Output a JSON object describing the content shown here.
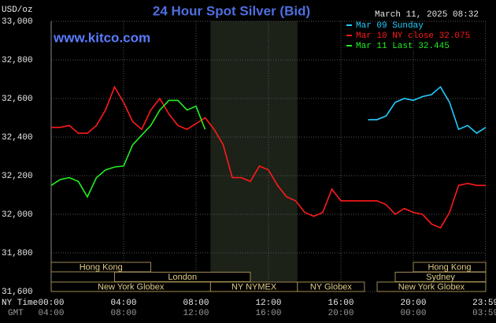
{
  "chart_data": {
    "type": "line",
    "title": "24 Hour Spot Silver (Bid)",
    "watermark": "www.kitco.com",
    "timestamp": "March 11, 2025 08:32",
    "ylabel": "USD/oz",
    "xlabel": "NY Time",
    "x2label": "GMT",
    "x": [
      0,
      0.5,
      1,
      1.5,
      2,
      2.5,
      3,
      3.5,
      4,
      4.5,
      5,
      5.5,
      6,
      6.5,
      7,
      7.5,
      8,
      8.5,
      9,
      9.5,
      10,
      10.5,
      11,
      11.5,
      12,
      12.5,
      13,
      13.5,
      14,
      14.5,
      15,
      15.5,
      16,
      16.5,
      17,
      17.5,
      18,
      18.5,
      19,
      19.5,
      20,
      20.5,
      21,
      21.5,
      22,
      22.5,
      23,
      23.5,
      24
    ],
    "series": [
      {
        "name": "Mar 09 Sunday",
        "color": "#22ccff",
        "values": [
          null,
          null,
          null,
          null,
          null,
          null,
          null,
          null,
          null,
          null,
          null,
          null,
          null,
          null,
          null,
          null,
          null,
          null,
          null,
          null,
          null,
          null,
          null,
          null,
          null,
          null,
          null,
          null,
          null,
          null,
          null,
          null,
          null,
          null,
          null,
          32.49,
          32.49,
          32.51,
          32.58,
          32.6,
          32.59,
          32.61,
          32.62,
          32.66,
          32.58,
          32.44,
          32.46,
          32.42,
          32.45
        ]
      },
      {
        "name": "Mar 10 NY close 32.075",
        "color": "#ff1a1a",
        "values": [
          32.45,
          32.45,
          32.46,
          32.42,
          32.42,
          32.46,
          32.54,
          32.66,
          32.58,
          32.48,
          32.44,
          32.54,
          32.6,
          32.52,
          32.46,
          32.44,
          32.47,
          32.5,
          32.44,
          32.36,
          32.19,
          32.19,
          32.17,
          32.25,
          32.23,
          32.15,
          32.09,
          32.07,
          32.01,
          31.99,
          32.01,
          32.13,
          32.07,
          32.07,
          32.07,
          32.07,
          32.07,
          32.05,
          32.0,
          32.03,
          32.01,
          32.0,
          31.95,
          31.93,
          32.01,
          32.15,
          32.16,
          32.15,
          32.15
        ]
      },
      {
        "name": "Mar 11 Last 32.445",
        "color": "#22ee22",
        "values": [
          32.15,
          32.18,
          32.19,
          32.17,
          32.09,
          32.19,
          32.23,
          32.245,
          32.25,
          32.36,
          32.41,
          32.46,
          32.54,
          32.59,
          32.59,
          32.54,
          32.56,
          32.44,
          null,
          null,
          null,
          null,
          null,
          null,
          null,
          null,
          null,
          null,
          null,
          null,
          null,
          null,
          null,
          null,
          null,
          null,
          null,
          null,
          null,
          null,
          null,
          null,
          null,
          null,
          null,
          null,
          null,
          null,
          null
        ]
      }
    ],
    "xlim": [
      0,
      24
    ],
    "xticks": [
      {
        "value": 0,
        "label": "00:00"
      },
      {
        "value": 4,
        "label": "04:00"
      },
      {
        "value": 8,
        "label": "08:00"
      },
      {
        "value": 12,
        "label": "12:00"
      },
      {
        "value": 16,
        "label": "16:00"
      },
      {
        "value": 20,
        "label": "20:00"
      },
      {
        "value": 23.983,
        "label": "23:59"
      }
    ],
    "x2ticklabels": [
      "04:00",
      "08:00",
      "12:00",
      "16:00",
      "20:00",
      "00:00",
      "03:59"
    ],
    "ylim": [
      31.6,
      33.0
    ],
    "yticks": [
      {
        "value": 31.6,
        "label": "31,600"
      },
      {
        "value": 31.8,
        "label": "31,800"
      },
      {
        "value": 32.0,
        "label": "32,000"
      },
      {
        "value": 32.2,
        "label": "32,200"
      },
      {
        "value": 32.4,
        "label": "32,400"
      },
      {
        "value": 32.6,
        "label": "32,600"
      },
      {
        "value": 32.8,
        "label": "32,800"
      },
      {
        "value": 33.0,
        "label": "33,000"
      }
    ],
    "grid": true,
    "sessions": [
      [
        {
          "name": "Hong Kong",
          "start": 0,
          "end": 5.5
        },
        {
          "name": "Hong Kong",
          "start": 20,
          "end": 24
        }
      ],
      [
        {
          "name": "London",
          "start": 3.5,
          "end": 11
        },
        {
          "name": "Sydney",
          "start": 19,
          "end": 24
        }
      ],
      [
        {
          "name": "New York Globex",
          "start": 0,
          "end": 8.8
        },
        {
          "name": "NY NYMEX",
          "start": 8.8,
          "end": 13.6,
          "shaded": true
        },
        {
          "name": "NY Globex",
          "start": 13.6,
          "end": 17.3
        },
        {
          "name": "New York Globex",
          "start": 18,
          "end": 24
        }
      ]
    ]
  }
}
